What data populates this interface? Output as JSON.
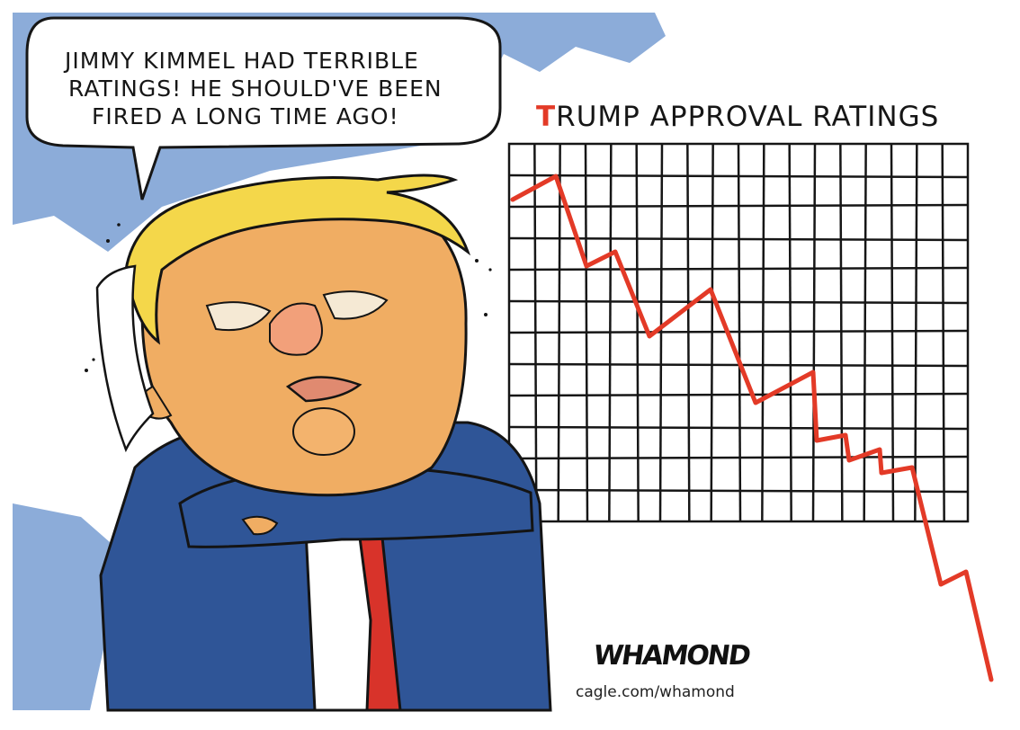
{
  "speech_bubble": {
    "line1": "JIMMY KIMMEL HAD TERRIBLE",
    "line2": "RATINGS! HE SHOULD'VE BEEN",
    "line3": "FIRED A LONG TIME AGO!"
  },
  "chart": {
    "title_initial": "T",
    "title_rest": "RUMP APPROVAL RATINGS",
    "line_color": "#e33a27",
    "trend": "falling"
  },
  "signature": "WHAMOND",
  "credit": "cagle.com/whamond",
  "colors": {
    "sky": "#6f97cf",
    "suit": "#2f5597",
    "skin": "#f0ad63",
    "hair": "#f4d74a",
    "tie": "#d8332a"
  }
}
